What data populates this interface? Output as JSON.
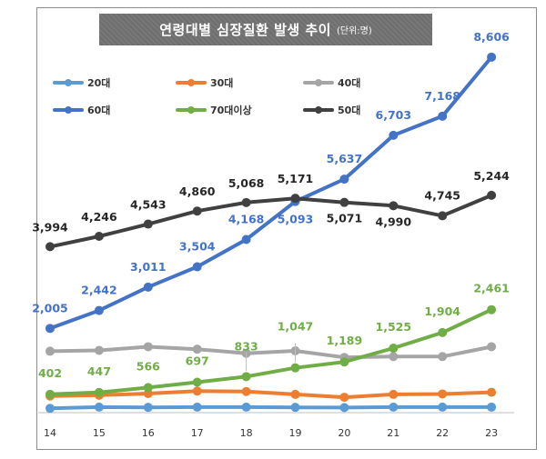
{
  "chart_data": {
    "type": "line",
    "title": "연령대별 심장질환 발생 추이",
    "unit": "(단위:명)",
    "categories": [
      "14",
      "15",
      "16",
      "17",
      "18",
      "19",
      "20",
      "21",
      "22",
      "23"
    ],
    "ylim": [
      0,
      9000
    ],
    "grid": false,
    "legend_position": "top",
    "series": [
      {
        "name": "20대",
        "color": "#5b9bd5",
        "values": [
          60,
          90,
          85,
          90,
          90,
          85,
          80,
          90,
          90,
          90
        ],
        "labels": false
      },
      {
        "name": "30대",
        "color": "#ed7d31",
        "values": [
          360,
          380,
          420,
          480,
          470,
          400,
          330,
          400,
          410,
          450
        ],
        "labels": false
      },
      {
        "name": "40대",
        "color": "#a5a5a5",
        "values": [
          1450,
          1470,
          1560,
          1500,
          1400,
          1460,
          1300,
          1320,
          1320,
          1560
        ],
        "labels": false
      },
      {
        "name": "60대",
        "color": "#4472c4",
        "values": [
          2005,
          2442,
          3011,
          3504,
          4168,
          5093,
          5637,
          6703,
          7168,
          8606
        ],
        "labels": true
      },
      {
        "name": "70대이상",
        "color": "#70ad47",
        "values": [
          402,
          447,
          566,
          697,
          833,
          1047,
          1189,
          1525,
          1904,
          2461
        ],
        "labels": true
      },
      {
        "name": "50대",
        "color": "#404040",
        "values": [
          3994,
          4246,
          4543,
          4860,
          5068,
          5171,
          5071,
          4990,
          4745,
          5244
        ],
        "labels": true
      }
    ],
    "data_labels": {
      "60대": [
        "2,005",
        "2,442",
        "3,011",
        "3,504",
        "4,168",
        "5,093",
        "5,637",
        "6,703",
        "7,168",
        "8,606"
      ],
      "70대이상": [
        "402",
        "447",
        "566",
        "697",
        "833",
        "1,047",
        "1,189",
        "1,525",
        "1,904",
        "2,461"
      ],
      "50대": [
        "3,994",
        "4,246",
        "4,543",
        "4,860",
        "5,068",
        "5,171",
        "5,071",
        "4,990",
        "4,745",
        "5,244"
      ]
    }
  }
}
